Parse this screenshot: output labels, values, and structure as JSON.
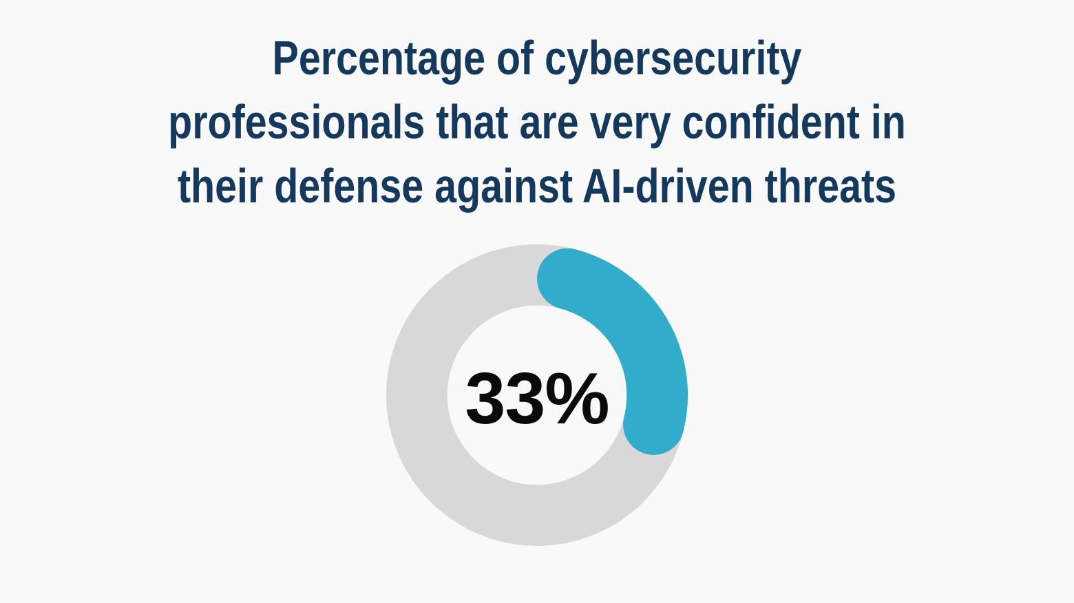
{
  "page": {
    "background_color": "#f9f9f9"
  },
  "header": {
    "title_lines": [
      "Percentage of cybersecurity",
      "professionals that are very confident in",
      "their defense against AI-driven threats"
    ],
    "title_color": "#14395c"
  },
  "chart_data": {
    "type": "pie",
    "subtype": "donut-progress",
    "title": "Percentage of cybersecurity professionals that are very confident in their defense against AI-driven threats",
    "values": [
      33,
      67
    ],
    "slice_colors": [
      "#31adcb",
      "#d8d8d8"
    ],
    "center_label": "33%",
    "center_label_color": "#0a0a0a",
    "start_angle_deg": 0,
    "direction": "clockwise",
    "rounded_caps": true,
    "inner_radius_ratio": 0.595,
    "outer_radius_px": 219,
    "legend": "none",
    "grid": "off"
  }
}
